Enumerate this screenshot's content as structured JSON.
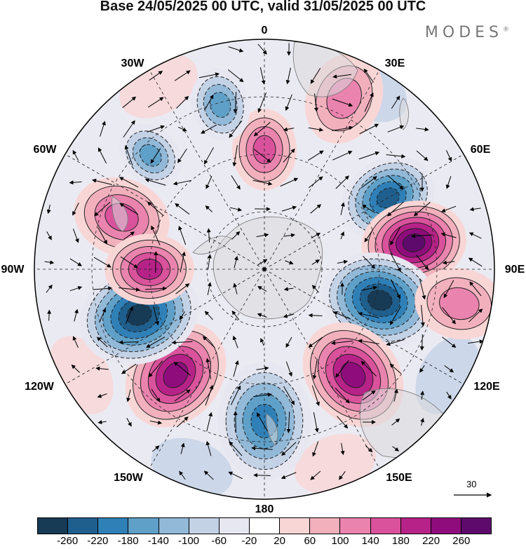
{
  "title": "Base 24/05/2025 00 UTC, valid 31/05/2025 00 UTC",
  "brand": {
    "name": "MODES",
    "mark": "®"
  },
  "longitude_labels": {
    "lon_0": "0",
    "lon_30e": "30E",
    "lon_60e": "60E",
    "lon_90e": "90E",
    "lon_120e": "120E",
    "lon_150e": "150E",
    "lon_180": "180",
    "lon_150w": "150W",
    "lon_120w": "120W",
    "lon_90w": "90W",
    "lon_60w": "60W",
    "lon_30w": "30W"
  },
  "reference_vector": {
    "value": "30"
  },
  "colorbar": {
    "colors": [
      "#173a55",
      "#1f5f8e",
      "#3080b8",
      "#5fa0c8",
      "#92b9d8",
      "#c4d2e6",
      "#e7e7f1",
      "#ffffff",
      "#f9d6d6",
      "#f2b0bd",
      "#ea84ae",
      "#d9529b",
      "#b72288",
      "#8e0c7c",
      "#5e0a6d"
    ],
    "labels": [
      "-260",
      "-220",
      "-180",
      "-140",
      "-100",
      "-60",
      "-20",
      "20",
      "60",
      "100",
      "140",
      "180",
      "220",
      "260"
    ]
  },
  "anomaly_centers": [
    {
      "sign": "neg",
      "color": "#1f5f8e",
      "lon_deg": 60,
      "level": "-220"
    },
    {
      "sign": "pos",
      "color": "#5e0a6d",
      "lon_deg": 80,
      "level": "260"
    },
    {
      "sign": "neg",
      "color": "#173a55",
      "lon_deg": 105,
      "level": "-260"
    },
    {
      "sign": "pos",
      "color": "#8e0c7c",
      "lon_deg": 140,
      "level": "220"
    },
    {
      "sign": "neg",
      "color": "#3080b8",
      "lon_deg": 180,
      "level": "-180"
    },
    {
      "sign": "pos",
      "color": "#8e0c7c",
      "lon_deg": 220,
      "level": "220"
    },
    {
      "sign": "neg",
      "color": "#173a55",
      "lon_deg": 250,
      "level": "-260"
    },
    {
      "sign": "pos",
      "color": "#d9529b",
      "lon_deg": 290,
      "level": "180"
    },
    {
      "sign": "pos",
      "color": "#b72288",
      "lon_deg": 270,
      "level": "220"
    },
    {
      "sign": "pos",
      "color": "#d9529b",
      "lon_deg": 0,
      "level": "180"
    },
    {
      "sign": "pos",
      "color": "#ea84ae",
      "lon_deg": 25,
      "level": "140"
    },
    {
      "sign": "pos",
      "color": "#ea84ae",
      "lon_deg": 100,
      "level": "140"
    },
    {
      "sign": "neg",
      "color": "#5fa0c8",
      "lon_deg": 345,
      "level": "-140"
    },
    {
      "sign": "neg",
      "color": "#5fa0c8",
      "lon_deg": 315,
      "level": "-140"
    }
  ]
}
